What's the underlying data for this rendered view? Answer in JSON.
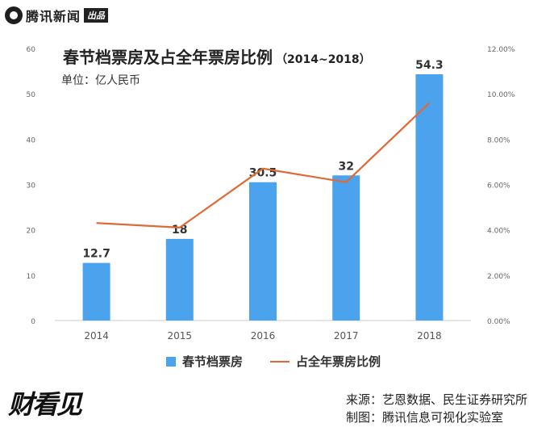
{
  "brand": {
    "name": "腾讯新闻",
    "tag": "出品"
  },
  "header": {
    "title": "春节档票房及占全年票房比例",
    "title_range": "（2014~2018）",
    "unit": "单位：亿人民币"
  },
  "colors": {
    "bar": "#4aa3ec",
    "line": "#e06a36",
    "axis_text": "#666666",
    "axis_line": "#cccccc"
  },
  "chart_data": {
    "type": "bar",
    "categories": [
      "2014",
      "2015",
      "2016",
      "2017",
      "2018"
    ],
    "series": [
      {
        "name": "春节档票房",
        "type": "bar",
        "axis": "left",
        "values": [
          12.7,
          18,
          30.5,
          32,
          54.3
        ]
      },
      {
        "name": "占全年票房比例",
        "type": "line",
        "axis": "right",
        "values": [
          4.3,
          4.1,
          6.7,
          6.1,
          9.6
        ]
      }
    ],
    "data_labels": [
      "12.7",
      "18",
      "30.5",
      "32",
      "54.3"
    ],
    "y_left": {
      "min": 0,
      "max": 60,
      "ticks": [
        "0",
        "10",
        "20",
        "30",
        "40",
        "50",
        "60"
      ]
    },
    "y_right": {
      "min": 0,
      "max": 12,
      "ticks": [
        "0.00%",
        "2.00%",
        "4.00%",
        "6.00%",
        "8.00%",
        "10.00%",
        "12.00%"
      ]
    },
    "grid": false,
    "legend_position": "bottom"
  },
  "footer": {
    "logo": "财看见",
    "source": "来源：艺恩数据、民生证券研究所",
    "made_by": "制图：腾讯信息可视化实验室"
  }
}
